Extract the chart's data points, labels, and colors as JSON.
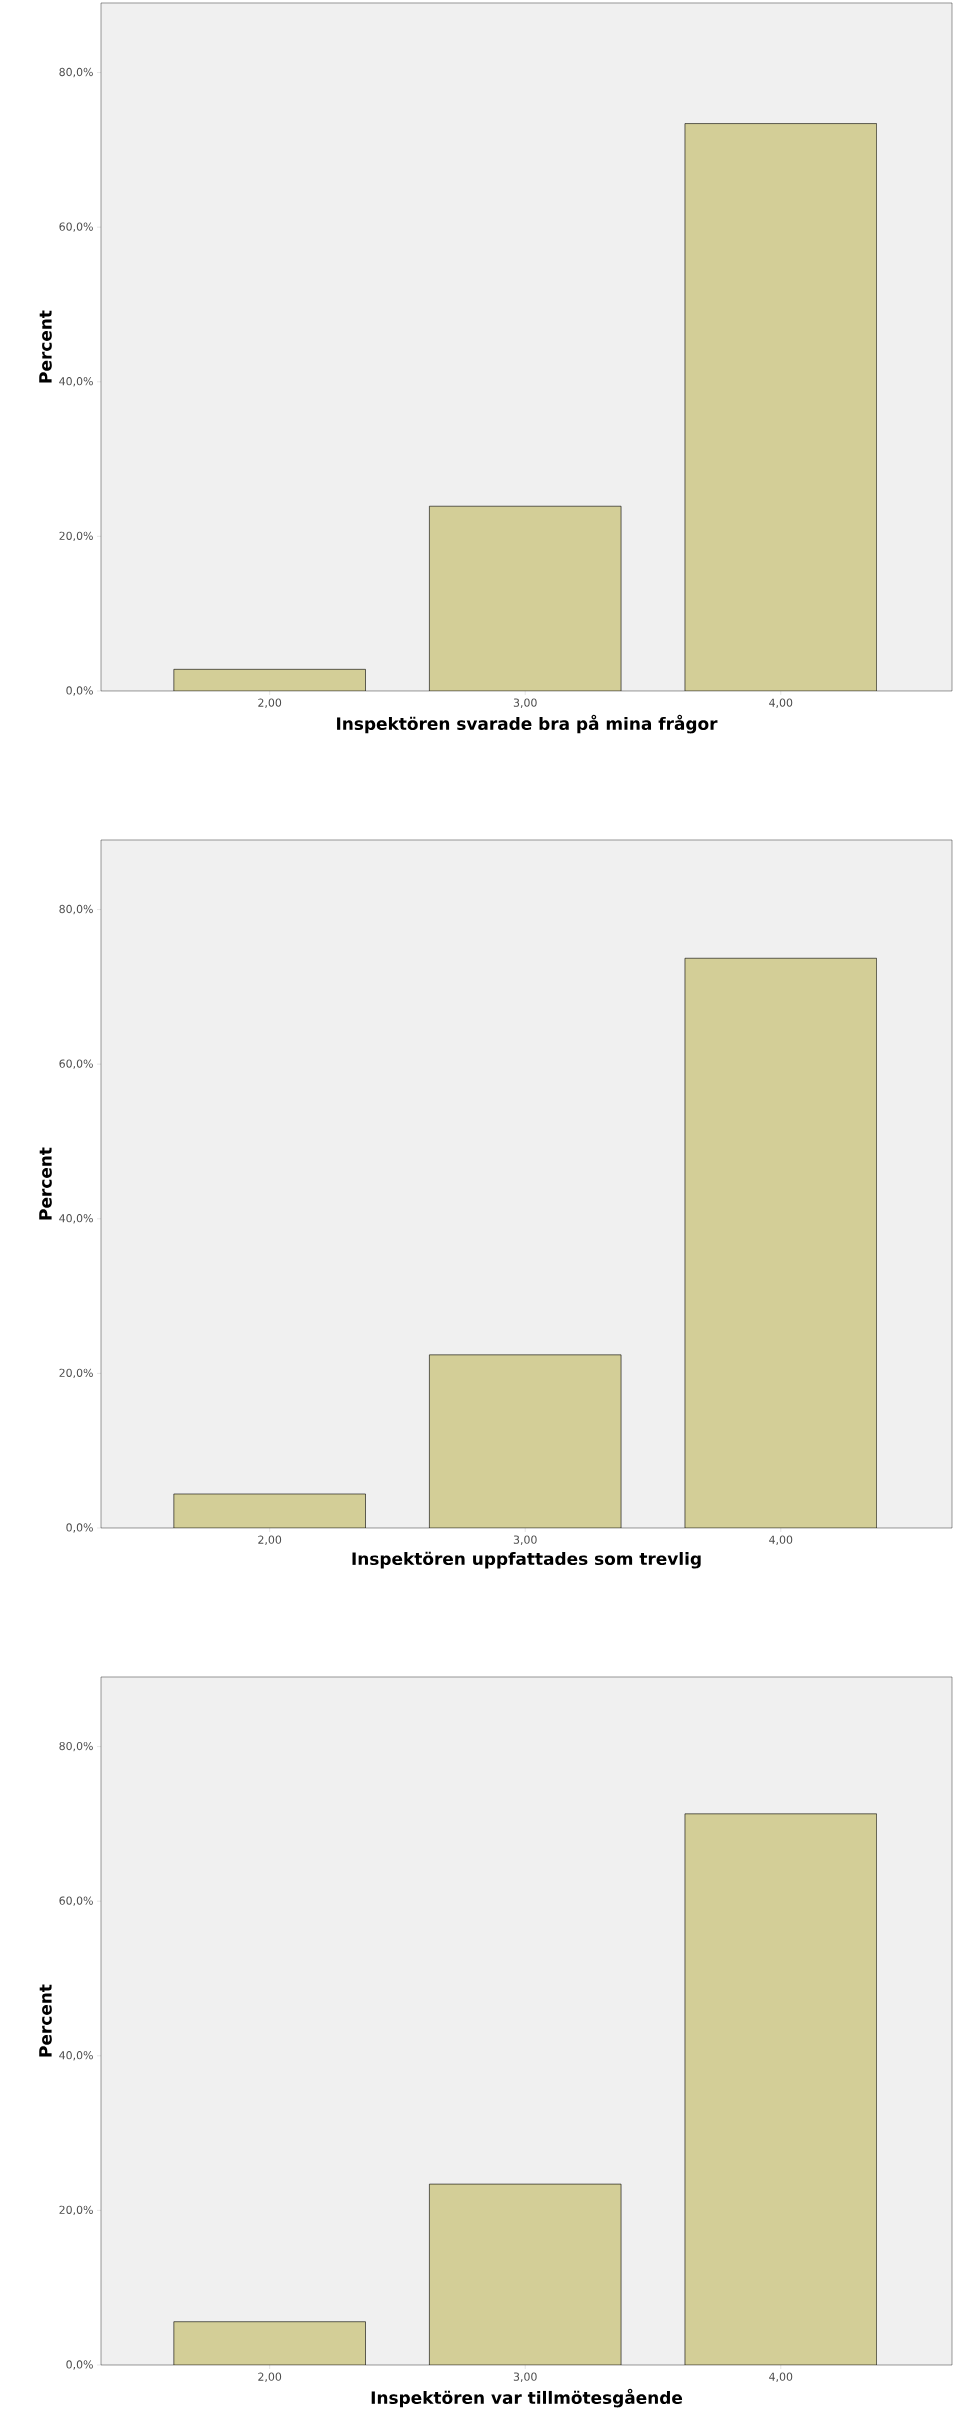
{
  "chart_data": [
    {
      "type": "bar",
      "categories": [
        "2,00",
        "3,00",
        "4,00"
      ],
      "values": [
        2.8,
        23.9,
        73.4
      ],
      "color": "#d3ce97",
      "xlabel": "Inspektören svarade bra på mina frågor",
      "ylabel": "Percent",
      "ylim": [
        0,
        89
      ],
      "yticks": [
        {
          "value": 0,
          "label": "0,0%"
        },
        {
          "value": 20,
          "label": "20,0%"
        },
        {
          "value": 40,
          "label": "40,0%"
        },
        {
          "value": 60,
          "label": "60,0%"
        },
        {
          "value": 80,
          "label": "80,0%"
        }
      ]
    },
    {
      "type": "bar",
      "categories": [
        "2,00",
        "3,00",
        "4,00"
      ],
      "values": [
        4.4,
        22.4,
        73.7
      ],
      "color": "#d3ce97",
      "xlabel": "Inspektören uppfattades som trevlig",
      "ylabel": "Percent",
      "ylim": [
        0,
        89
      ],
      "yticks": [
        {
          "value": 0,
          "label": "0,0%"
        },
        {
          "value": 20,
          "label": "20,0%"
        },
        {
          "value": 40,
          "label": "40,0%"
        },
        {
          "value": 60,
          "label": "60,0%"
        },
        {
          "value": 80,
          "label": "80,0%"
        }
      ]
    },
    {
      "type": "bar",
      "categories": [
        "2,00",
        "3,00",
        "4,00"
      ],
      "values": [
        5.6,
        23.4,
        71.3
      ],
      "color": "#d3ce97",
      "xlabel": "Inspektören var tillmötesgående",
      "ylabel": "Percent",
      "ylim": [
        0,
        89
      ],
      "yticks": [
        {
          "value": 0,
          "label": "0,0%"
        },
        {
          "value": 20,
          "label": "20,0%"
        },
        {
          "value": 40,
          "label": "40,0%"
        },
        {
          "value": 60,
          "label": "60,0%"
        },
        {
          "value": 80,
          "label": "80,0%"
        }
      ]
    }
  ]
}
